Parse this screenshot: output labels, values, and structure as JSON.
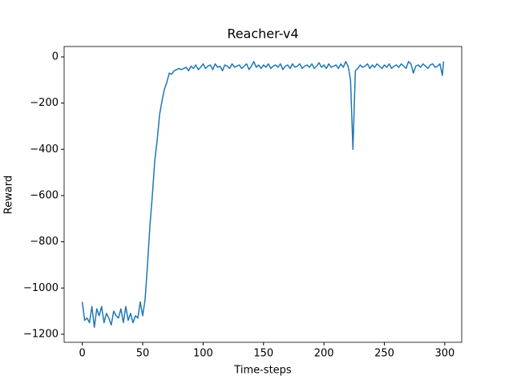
{
  "chart_data": {
    "type": "line",
    "title": "Reacher-v4",
    "xlabel": "Time-steps",
    "ylabel": "Reward",
    "x": [
      0,
      2,
      4,
      6,
      8,
      10,
      12,
      14,
      16,
      18,
      20,
      22,
      24,
      26,
      28,
      30,
      32,
      34,
      36,
      38,
      40,
      42,
      44,
      46,
      48,
      50,
      52,
      54,
      56,
      58,
      60,
      62,
      64,
      66,
      68,
      70,
      72,
      74,
      76,
      78,
      80,
      82,
      84,
      86,
      88,
      90,
      92,
      94,
      96,
      98,
      100,
      102,
      104,
      106,
      108,
      110,
      112,
      114,
      116,
      118,
      120,
      122,
      124,
      126,
      128,
      130,
      132,
      134,
      136,
      138,
      140,
      142,
      144,
      146,
      148,
      150,
      152,
      154,
      156,
      158,
      160,
      162,
      164,
      166,
      168,
      170,
      172,
      174,
      176,
      178,
      180,
      182,
      184,
      186,
      188,
      190,
      192,
      194,
      196,
      198,
      200,
      202,
      204,
      206,
      208,
      210,
      212,
      214,
      216,
      218,
      220,
      222,
      224,
      226,
      228,
      230,
      232,
      234,
      236,
      238,
      240,
      242,
      244,
      246,
      248,
      250,
      252,
      254,
      256,
      258,
      260,
      262,
      264,
      266,
      268,
      270,
      272,
      274,
      276,
      278,
      280,
      282,
      284,
      286,
      288,
      290,
      292,
      294,
      296,
      298,
      299
    ],
    "series": [
      {
        "name": "Reward",
        "color": "#1f77b4",
        "values": [
          -1060,
          -1140,
          -1130,
          -1150,
          -1080,
          -1170,
          -1090,
          -1120,
          -1080,
          -1150,
          -1110,
          -1130,
          -1160,
          -1100,
          -1120,
          -1130,
          -1090,
          -1150,
          -1080,
          -1140,
          -1110,
          -1150,
          -1120,
          -1130,
          -1060,
          -1120,
          -1050,
          -900,
          -730,
          -600,
          -450,
          -360,
          -250,
          -190,
          -140,
          -110,
          -70,
          -75,
          -60,
          -55,
          -50,
          -55,
          -50,
          -45,
          -60,
          -40,
          -50,
          -35,
          -55,
          -45,
          -30,
          -50,
          -40,
          -35,
          -55,
          -30,
          -45,
          -40,
          -60,
          -35,
          -40,
          -50,
          -30,
          -45,
          -40,
          -35,
          -50,
          -40,
          -30,
          -55,
          -40,
          -20,
          -45,
          -35,
          -50,
          -35,
          -45,
          -30,
          -50,
          -40,
          -35,
          -45,
          -30,
          -55,
          -40,
          -35,
          -50,
          -30,
          -45,
          -40,
          -30,
          -50,
          -40,
          -35,
          -45,
          -30,
          -50,
          -40,
          -25,
          -45,
          -35,
          -50,
          -30,
          -45,
          -40,
          -35,
          -50,
          -30,
          -45,
          -20,
          -40,
          -100,
          -400,
          -60,
          -50,
          -35,
          -45,
          -40,
          -30,
          -50,
          -35,
          -45,
          -30,
          -40,
          -50,
          -35,
          -45,
          -30,
          -50,
          -40,
          -35,
          -45,
          -30,
          -40,
          -50,
          -20,
          -30,
          -70,
          -40,
          -35,
          -45,
          -30,
          -40,
          -50,
          -35,
          -30,
          -45,
          -40,
          -30,
          -80,
          -20
        ]
      }
    ],
    "xlim": [
      -15,
      314
    ],
    "ylim": [
      -1235,
      45
    ],
    "xticks": [
      0,
      50,
      100,
      150,
      200,
      250,
      300
    ],
    "yticks": [
      {
        "value": -1200,
        "label": "−1200"
      },
      {
        "value": -1000,
        "label": "−1000"
      },
      {
        "value": -800,
        "label": "−800"
      },
      {
        "value": -600,
        "label": "−600"
      },
      {
        "value": -400,
        "label": "−400"
      },
      {
        "value": -200,
        "label": "−200"
      },
      0
    ],
    "grid": false
  }
}
